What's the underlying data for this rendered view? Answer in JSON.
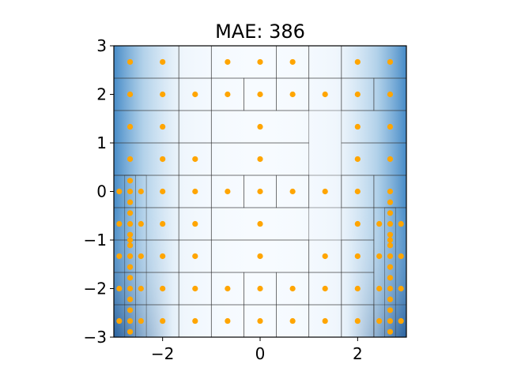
{
  "chart_data": {
    "type": "scatter",
    "title": "MAE: 386",
    "xlabel": "",
    "ylabel": "",
    "xlim": [
      -3,
      3
    ],
    "ylim": [
      -3,
      3
    ],
    "xticks": [
      -2,
      0,
      2
    ],
    "xtick_labels": [
      "−2",
      "0",
      "2"
    ],
    "yticks": [
      -3,
      -2,
      -1,
      0,
      1,
      2,
      3
    ],
    "ytick_labels": [
      "−3",
      "−2",
      "−1",
      "0",
      "1",
      "2",
      "3"
    ],
    "grid": false,
    "background": "heatmap: white center, blue toward left/right edges and bottom corners",
    "point_color": "#ffa500",
    "heat_colors": [
      "#f7fbff",
      "#c6dbef",
      "#6baed6",
      "#2171b5",
      "#08306b"
    ],
    "cell_line_color": "#333333",
    "cells": [
      [
        -3.0,
        2.333,
        -1.667,
        3.0
      ],
      [
        -1.667,
        2.333,
        -1.0,
        3.0
      ],
      [
        -1.0,
        2.333,
        0.333,
        3.0
      ],
      [
        0.333,
        2.333,
        1.0,
        3.0
      ],
      [
        1.0,
        2.333,
        1.667,
        3.0
      ],
      [
        1.667,
        2.333,
        3.0,
        3.0
      ],
      [
        -3.0,
        1.667,
        -1.667,
        2.333
      ],
      [
        -1.667,
        1.667,
        -1.0,
        2.333
      ],
      [
        -1.0,
        1.667,
        -0.333,
        2.333
      ],
      [
        -0.333,
        1.667,
        0.333,
        2.333
      ],
      [
        0.333,
        1.667,
        1.0,
        2.333
      ],
      [
        1.0,
        1.667,
        1.667,
        2.333
      ],
      [
        1.667,
        1.667,
        2.333,
        2.333
      ],
      [
        2.333,
        1.667,
        3.0,
        2.333
      ],
      [
        -3.0,
        1.0,
        -1.667,
        1.667
      ],
      [
        -1.667,
        1.0,
        -1.0,
        1.667
      ],
      [
        -1.0,
        1.0,
        1.0,
        1.667
      ],
      [
        1.667,
        1.0,
        3.0,
        1.667
      ],
      [
        -3.0,
        0.333,
        -1.667,
        1.0
      ],
      [
        -1.667,
        0.333,
        -1.0,
        1.0
      ],
      [
        -1.0,
        0.333,
        1.0,
        1.0
      ],
      [
        1.667,
        0.333,
        3.0,
        1.0
      ],
      [
        -3.0,
        -0.333,
        -1.667,
        0.333
      ],
      [
        -1.667,
        -0.333,
        -1.0,
        0.333
      ],
      [
        -1.0,
        -0.333,
        -0.333,
        0.333
      ],
      [
        -0.333,
        -0.333,
        0.333,
        0.333
      ],
      [
        0.333,
        -0.333,
        1.0,
        0.333
      ],
      [
        1.0,
        -0.333,
        1.667,
        0.333
      ],
      [
        1.667,
        -0.333,
        2.333,
        0.333
      ],
      [
        2.333,
        -0.333,
        3.0,
        0.333
      ],
      [
        -3.0,
        -1.0,
        -1.667,
        -0.333
      ],
      [
        -1.667,
        -1.0,
        -1.0,
        -0.333
      ],
      [
        -1.0,
        -1.0,
        1.0,
        -0.333
      ],
      [
        1.667,
        -1.0,
        2.333,
        -0.333
      ],
      [
        -3.0,
        -1.667,
        -1.667,
        -1.0
      ],
      [
        -1.667,
        -1.667,
        -1.0,
        -1.0
      ],
      [
        -1.0,
        -1.667,
        1.0,
        -1.0
      ],
      [
        1.0,
        -1.667,
        1.667,
        -1.0
      ],
      [
        1.667,
        -1.667,
        2.333,
        -1.0
      ],
      [
        -3.0,
        -2.333,
        -1.667,
        -1.667
      ],
      [
        -1.667,
        -2.333,
        -1.0,
        -1.667
      ],
      [
        -1.0,
        -2.333,
        -0.333,
        -1.667
      ],
      [
        -0.333,
        -2.333,
        0.333,
        -1.667
      ],
      [
        0.333,
        -2.333,
        1.0,
        -1.667
      ],
      [
        1.0,
        -2.333,
        1.667,
        -1.667
      ],
      [
        1.667,
        -2.333,
        2.333,
        -1.667
      ],
      [
        -3.0,
        -3.0,
        -1.667,
        -2.333
      ],
      [
        -1.667,
        -3.0,
        -1.0,
        -2.333
      ],
      [
        -1.0,
        -3.0,
        -0.333,
        -2.333
      ],
      [
        -0.333,
        -3.0,
        0.333,
        -2.333
      ],
      [
        0.333,
        -3.0,
        1.0,
        -2.333
      ],
      [
        1.0,
        -3.0,
        1.667,
        -2.333
      ],
      [
        1.667,
        -3.0,
        2.333,
        -2.333
      ],
      [
        2.333,
        -3.0,
        3.0,
        -2.333
      ],
      [
        -3.0,
        -3.0,
        -2.333,
        0.333
      ],
      [
        2.333,
        -3.0,
        3.0,
        -0.333
      ],
      [
        -2.778,
        -3.0,
        -2.556,
        0.333
      ],
      [
        2.556,
        -3.0,
        2.778,
        -0.333
      ]
    ],
    "x": [
      -2.667,
      -2.0,
      -0.667,
      0.0,
      0.667,
      2.0,
      2.667,
      -2.667,
      -2.0,
      -1.333,
      -0.667,
      0.0,
      0.667,
      1.333,
      2.0,
      2.667,
      -2.667,
      -2.0,
      0.0,
      2.0,
      2.667,
      -2.667,
      -2.0,
      -1.333,
      0.0,
      2.0,
      2.667,
      -2.889,
      -2.667,
      -2.444,
      -2.0,
      -1.333,
      -0.667,
      0.0,
      0.667,
      1.333,
      2.0,
      2.667,
      -2.667,
      -2.667,
      -2.667,
      -2.667,
      -2.667,
      -2.667,
      -2.667,
      -2.667,
      -2.667,
      -2.667,
      -2.667,
      -2.667,
      -2.667,
      -2.667,
      -2.667,
      -2.889,
      -2.444,
      -2.889,
      -2.444,
      -2.889,
      -2.444,
      -2.889,
      -2.444,
      -2.0,
      -1.333,
      0.0,
      2.0,
      2.444,
      2.889,
      -2.0,
      -1.333,
      0.0,
      1.333,
      2.0,
      2.444,
      2.889,
      -2.0,
      -1.333,
      -0.667,
      0.0,
      0.667,
      1.333,
      2.0,
      2.444,
      2.889,
      -2.0,
      -1.333,
      -0.667,
      0.0,
      0.667,
      1.333,
      2.0,
      2.444,
      2.889,
      2.667,
      2.667,
      2.667,
      2.667,
      2.667,
      2.667,
      2.667,
      2.667,
      2.667,
      2.667,
      2.667,
      2.667,
      2.667,
      2.667
    ],
    "y": [
      2.667,
      2.667,
      2.667,
      2.667,
      2.667,
      2.667,
      2.667,
      2.0,
      2.0,
      2.0,
      2.0,
      2.0,
      2.0,
      2.0,
      2.0,
      2.0,
      1.333,
      1.333,
      1.333,
      1.333,
      1.333,
      0.667,
      0.667,
      0.667,
      0.667,
      0.667,
      0.667,
      0.0,
      0.0,
      0.0,
      0.0,
      0.0,
      0.0,
      0.0,
      0.0,
      0.0,
      0.0,
      0.0,
      0.222,
      -0.222,
      -0.444,
      -0.667,
      -0.889,
      -1.111,
      -1.333,
      -1.556,
      -1.778,
      -2.0,
      -2.222,
      -2.444,
      -2.667,
      -2.889,
      -1.0,
      -0.667,
      -0.667,
      -1.333,
      -1.333,
      -2.0,
      -2.0,
      -2.667,
      -2.667,
      -0.667,
      -0.667,
      -0.667,
      -0.667,
      -0.667,
      -0.667,
      -1.333,
      -1.333,
      -1.333,
      -1.333,
      -1.333,
      -1.333,
      -1.333,
      -2.0,
      -2.0,
      -2.0,
      -2.0,
      -2.0,
      -2.0,
      -2.0,
      -2.0,
      -2.0,
      -2.667,
      -2.667,
      -2.667,
      -2.667,
      -2.667,
      -2.667,
      -2.667,
      -2.667,
      -2.667,
      -0.444,
      -0.667,
      -0.889,
      -1.111,
      -1.333,
      -1.556,
      -1.778,
      -2.0,
      -2.222,
      -2.444,
      -2.667,
      -2.889,
      -0.222,
      -1.0
    ]
  }
}
